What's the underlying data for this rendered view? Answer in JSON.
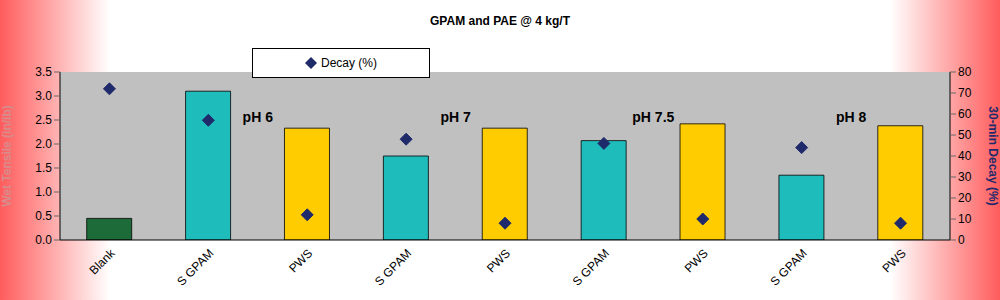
{
  "chart_data": {
    "type": "bar",
    "title": "GPAM and PAE @ 4 kg/T",
    "y_label": "Wet Tensile (in/lb)",
    "y2_label": "30-min Decay (%)",
    "categories": [
      "Blank",
      "S GPAM",
      "PWS",
      "S GPAM",
      "PWS",
      "S GPAM",
      "PWS",
      "S GPAM",
      "PWS"
    ],
    "series": [
      {
        "type": "bar",
        "colors": [
          "#1e6b3a",
          "#1fbcbc",
          "#ffcc00",
          "#1fbcbc",
          "#ffcc00",
          "#1fbcbc",
          "#ffcc00",
          "#1fbcbc",
          "#ffcc00"
        ],
        "values": [
          0.45,
          3.1,
          2.33,
          1.75,
          2.33,
          2.07,
          2.42,
          1.35,
          2.38
        ]
      },
      {
        "name": "Decay (%)",
        "type": "scatter",
        "marker": "diamond",
        "color": "#1f2a6b",
        "axis": "y2",
        "values": [
          72,
          57,
          12,
          48,
          8,
          46,
          10,
          44,
          8
        ]
      }
    ],
    "annotations": [
      "pH 6",
      "pH 7",
      "pH 7.5",
      "pH 8"
    ],
    "ylim": [
      0,
      3.5
    ],
    "yticks": [
      {
        "value": 0,
        "label": "0.0"
      },
      0.5,
      {
        "value": 1,
        "label": "1.0"
      },
      1.5,
      {
        "value": 2,
        "label": "2.0"
      },
      2.5,
      {
        "value": 3,
        "label": "3.0"
      },
      3.5
    ],
    "y2lim": [
      0,
      80
    ],
    "y2ticks": [
      0,
      10,
      20,
      30,
      40,
      50,
      60,
      70,
      80
    ],
    "grid": false,
    "legend": "top"
  }
}
